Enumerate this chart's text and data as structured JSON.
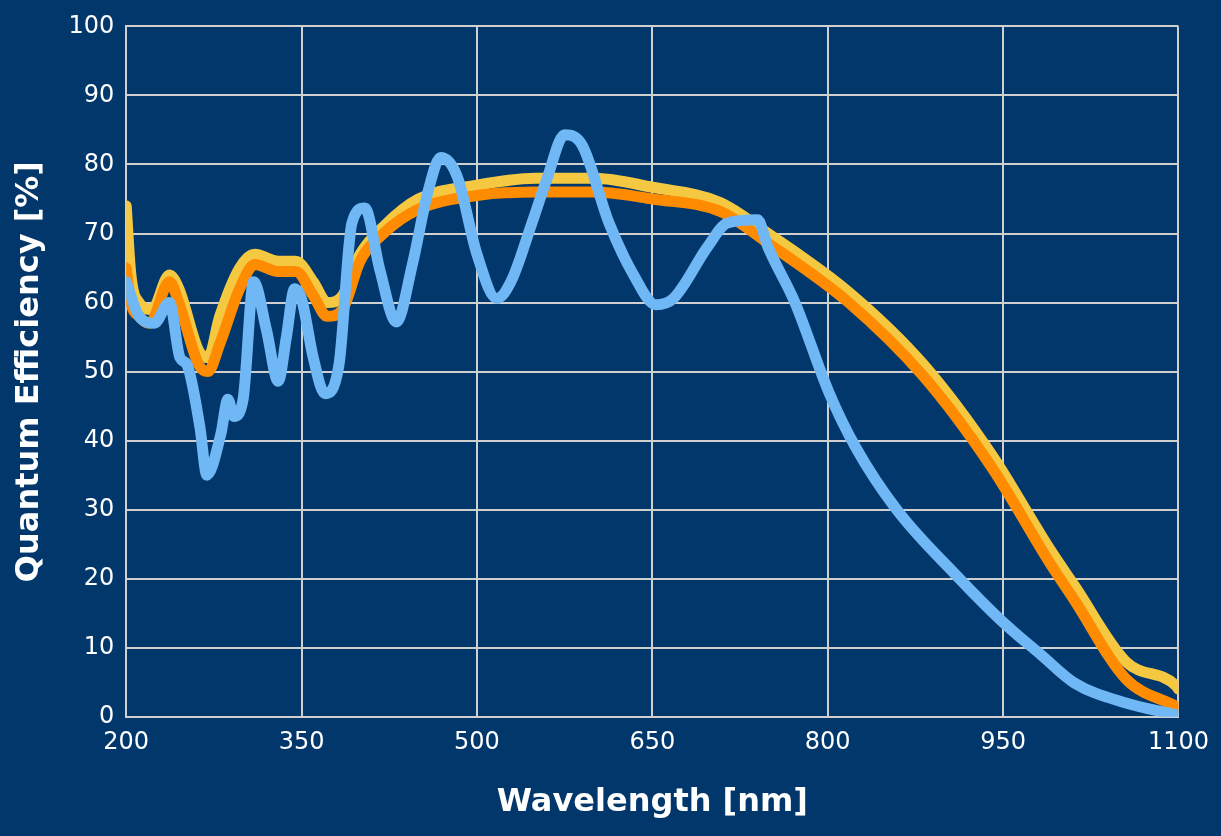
{
  "chart_data": {
    "type": "line",
    "xlabel": "Wavelength [nm]",
    "ylabel": "Quantum Efficiency [%]",
    "xlim": [
      200,
      1100
    ],
    "xticks": [
      200,
      350,
      500,
      650,
      800,
      950,
      1100
    ],
    "ylim": [
      0,
      100
    ],
    "yticks": [
      0,
      10,
      20,
      30,
      40,
      50,
      60,
      70,
      80,
      90,
      100
    ],
    "grid": true,
    "marker": "none",
    "line_style": "solid",
    "legend": false,
    "series": [
      {
        "color": "#6fb8f5",
        "x": [
          200,
          211,
          224,
          237,
          246,
          252,
          263,
          269,
          281,
          287,
          292,
          300,
          309,
          320,
          330,
          337,
          344,
          350,
          360,
          370,
          382,
          393,
          404,
          417,
          431,
          445,
          458,
          469,
          483,
          500,
          517,
          529,
          547,
          560,
          575,
          590,
          613,
          634,
          653,
          668,
          697,
          714,
          740,
          749,
          772,
          801,
          824,
          859,
          911,
          948,
          983,
          1011,
          1055,
          1098
        ],
        "values": [
          63,
          58,
          57,
          60,
          52,
          51,
          42,
          35,
          41,
          46,
          43.5,
          46,
          63,
          56,
          48.6,
          55,
          62,
          60.5,
          52,
          46.8,
          51,
          71.5,
          73.7,
          64.7,
          57.2,
          65.7,
          76,
          81,
          78.3,
          67,
          60.6,
          63,
          71.5,
          78,
          84.3,
          82.8,
          71.5,
          64,
          59.7,
          60.6,
          68,
          71.5,
          72,
          68,
          60,
          47,
          39,
          30,
          20.3,
          14,
          8.9,
          4.9,
          2,
          0.3
        ]
      },
      {
        "color": "#ff8c00",
        "x": [
          200,
          204,
          211,
          220,
          237,
          245,
          262,
          270,
          280,
          297,
          310,
          330,
          345,
          360,
          372,
          385,
          400,
          420,
          450,
          500,
          550,
          600,
          650,
          708,
          749,
          818,
          882,
          940,
          991,
          1011,
          1055,
          1098,
          1100
        ],
        "values": [
          65,
          60,
          58,
          57,
          63,
          60,
          51,
          50,
          54,
          62,
          65.5,
          64.5,
          64.5,
          61,
          58,
          59,
          66,
          70,
          73.5,
          75.5,
          76,
          76,
          75,
          73.2,
          68.6,
          60,
          49.3,
          36.2,
          22,
          16.9,
          5.5,
          1.5,
          1.3
        ]
      },
      {
        "color": "#f5c842",
        "x": [
          200,
          204,
          211,
          222,
          237,
          245,
          262,
          270,
          280,
          297,
          310,
          330,
          345,
          360,
          372,
          385,
          400,
          420,
          450,
          500,
          550,
          600,
          650,
          708,
          749,
          818,
          882,
          940,
          991,
          1011,
          1055,
          1098,
          1100
        ],
        "values": [
          74,
          64,
          60,
          59,
          64,
          62,
          53,
          52,
          58,
          65,
          67,
          66,
          66,
          63,
          60,
          61,
          67,
          71,
          75,
          77,
          78,
          78,
          76.7,
          74.5,
          70,
          61.5,
          51,
          38,
          24,
          19,
          8,
          4.5,
          4
        ]
      }
    ]
  }
}
